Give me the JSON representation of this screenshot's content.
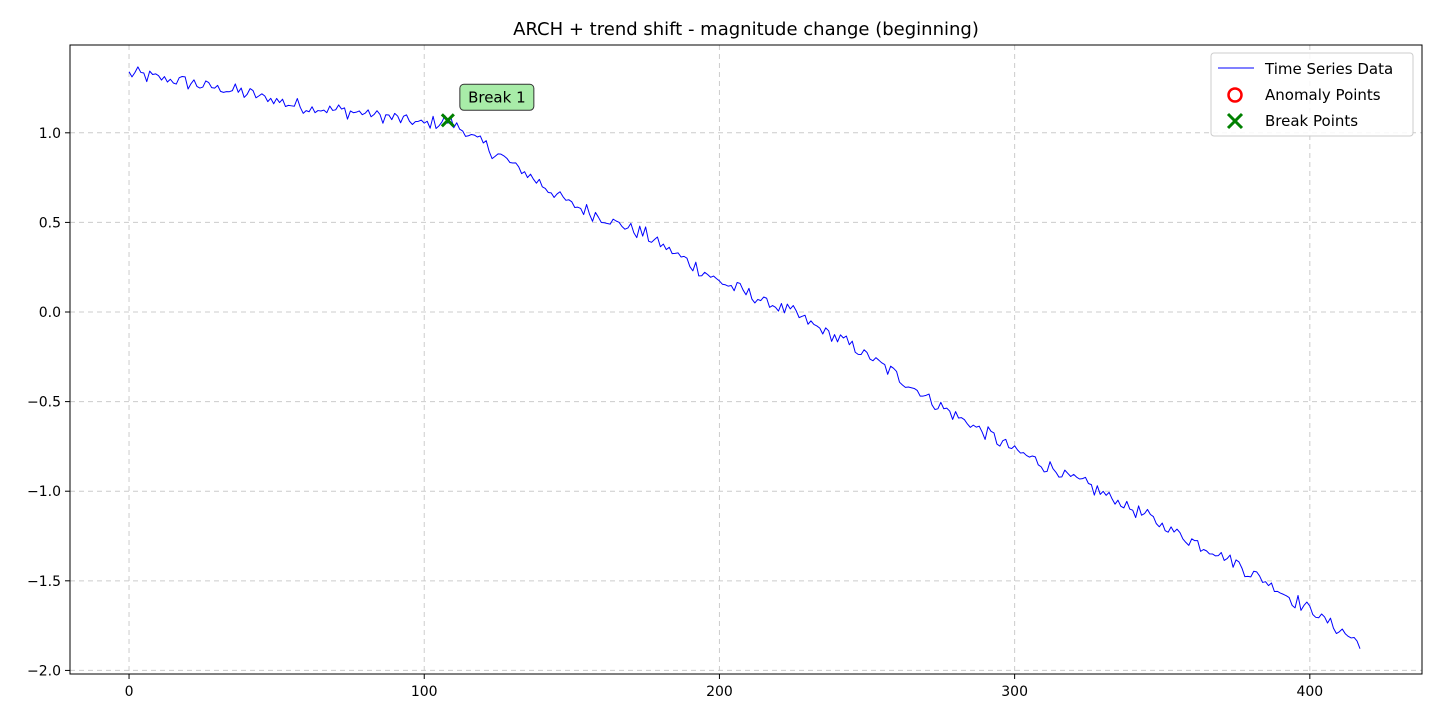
{
  "chart_data": {
    "type": "line",
    "title": "ARCH + trend shift - magnitude change (beginning)",
    "xlabel": "",
    "ylabel": "",
    "xlim": [
      -20,
      438
    ],
    "ylim": [
      -2.02,
      1.49
    ],
    "xticks": [
      0,
      100,
      200,
      300,
      400
    ],
    "yticks": [
      1.0,
      0.5,
      0.0,
      -0.5,
      -1.0,
      -1.5,
      -2.0
    ],
    "xtick_labels": [
      "0",
      "100",
      "200",
      "300",
      "400"
    ],
    "ytick_labels": [
      "1.0",
      "0.5",
      "0.0",
      "−0.5",
      "−1.0",
      "−1.5",
      "−2.0"
    ],
    "grid": true,
    "legend_position": "top-right",
    "legend": [
      "Time Series Data",
      "Anomaly Points",
      "Break Points"
    ],
    "series": [
      {
        "name": "Time Series Data",
        "color": "#0000ff",
        "x": [
          0,
          20,
          40,
          60,
          80,
          100,
          108,
          125,
          150,
          175,
          200,
          225,
          250,
          275,
          300,
          325,
          350,
          375,
          400,
          417
        ],
        "y": [
          1.33,
          1.28,
          1.22,
          1.14,
          1.11,
          1.05,
          1.07,
          0.88,
          0.6,
          0.43,
          0.17,
          -0.01,
          -0.24,
          -0.53,
          -0.77,
          -0.97,
          -1.19,
          -1.4,
          -1.66,
          -1.85
        ]
      }
    ],
    "break_points": [
      {
        "x": 108,
        "y": 1.07,
        "label": "Break 1"
      }
    ],
    "anomaly_points": [],
    "colors": {
      "series": "#0000ff",
      "break": "#008000",
      "anomaly": "#ff0000",
      "annotation_bg": "#a8eca8"
    }
  }
}
